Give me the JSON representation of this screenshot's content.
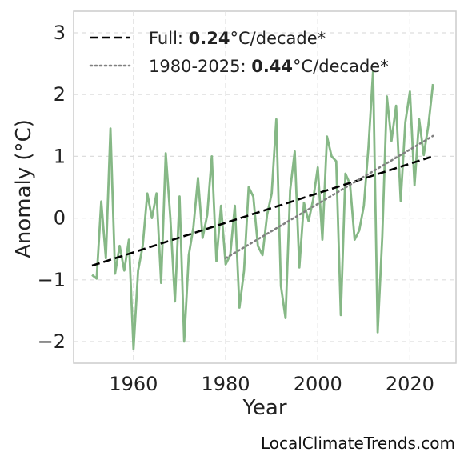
{
  "chart_data": {
    "type": "line",
    "xlabel": "Year",
    "ylabel": "Anomaly (°C)",
    "xlim": [
      1947,
      2030
    ],
    "ylim": [
      -2.35,
      3.35
    ],
    "x_ticks": [
      1960,
      1980,
      2000,
      2020
    ],
    "y_ticks": [
      3,
      2,
      1,
      0,
      -1,
      -2
    ],
    "y_tick_labels": [
      "3",
      "2",
      "1",
      "0",
      "−1",
      "−2"
    ],
    "grid": true,
    "legend_position": "top-left",
    "series": [
      {
        "color": "#86b886",
        "style": "solid",
        "x": [
          1951,
          1952,
          1953,
          1954,
          1955,
          1956,
          1957,
          1958,
          1959,
          1960,
          1961,
          1962,
          1963,
          1964,
          1965,
          1966,
          1967,
          1968,
          1969,
          1970,
          1971,
          1972,
          1973,
          1974,
          1975,
          1976,
          1977,
          1978,
          1979,
          1980,
          1981,
          1982,
          1983,
          1984,
          1985,
          1986,
          1987,
          1988,
          1989,
          1990,
          1991,
          1992,
          1993,
          1994,
          1995,
          1996,
          1997,
          1998,
          1999,
          2000,
          2001,
          2002,
          2003,
          2004,
          2005,
          2006,
          2007,
          2008,
          2009,
          2010,
          2011,
          2012,
          2013,
          2014,
          2015,
          2016,
          2017,
          2018,
          2019,
          2020,
          2021,
          2022,
          2023,
          2024,
          2025
        ],
        "values": [
          -0.92,
          -0.98,
          0.27,
          -0.65,
          1.45,
          -0.9,
          -0.45,
          -0.85,
          -0.35,
          -2.12,
          -0.85,
          -0.45,
          0.4,
          0.0,
          0.4,
          -1.05,
          1.05,
          0.0,
          -1.35,
          0.35,
          -2.0,
          -0.6,
          -0.15,
          0.65,
          -0.32,
          0.05,
          1.0,
          -0.7,
          0.2,
          -0.75,
          -0.6,
          0.2,
          -1.45,
          -0.85,
          0.5,
          0.35,
          -0.45,
          -0.6,
          0.05,
          0.4,
          1.6,
          -1.1,
          -1.62,
          0.45,
          1.08,
          -0.8,
          0.25,
          -0.05,
          0.3,
          0.82,
          -0.35,
          1.32,
          1.0,
          0.92,
          -1.57,
          0.72,
          0.55,
          -0.35,
          -0.2,
          0.2,
          1.15,
          2.38,
          -1.85,
          -0.3,
          1.97,
          1.25,
          1.82,
          0.28,
          1.55,
          2.05,
          0.53,
          1.6,
          1.02,
          1.5,
          2.17
        ]
      },
      {
        "name": "Full: 0.24°C/decade*",
        "color": "#000000",
        "style": "dashed",
        "x": [
          1951,
          2025
        ],
        "values": [
          -0.77,
          1.0
        ]
      },
      {
        "name": "1980-2025: 0.44°C/decade*",
        "color": "#808080",
        "style": "dotted",
        "x": [
          1980,
          2025
        ],
        "values": [
          -0.65,
          1.33
        ]
      }
    ],
    "legend": [
      {
        "prefix": "Full: ",
        "bold": "0.24",
        "suffix": "°C/decade*",
        "style": "dashed",
        "color": "#000000"
      },
      {
        "prefix": "1980-2025: ",
        "bold": "0.44",
        "suffix": "°C/decade*",
        "style": "dotted",
        "color": "#808080"
      }
    ]
  },
  "credit": "LocalClimateTrends.com"
}
